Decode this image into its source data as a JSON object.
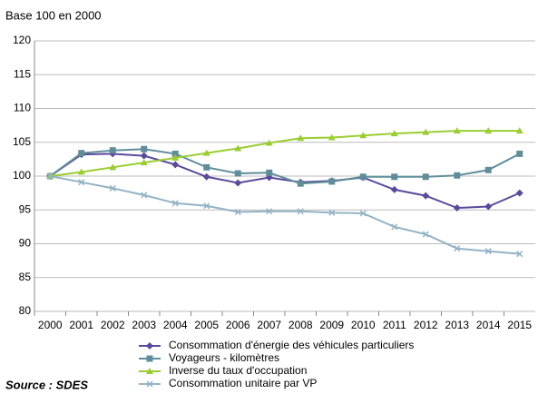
{
  "chart_data": {
    "type": "line",
    "subtitle": "Base 100 en 2000",
    "source": "Source : SDES",
    "categories": [
      "2000",
      "2001",
      "2002",
      "2003",
      "2004",
      "2005",
      "2006",
      "2007",
      "2008",
      "2009",
      "2010",
      "2011",
      "2012",
      "2013",
      "2014",
      "2015"
    ],
    "series": [
      {
        "name": "Consommation d'énergie des véhicules particuliers",
        "color": "#5b4a9b",
        "marker": "diamond",
        "values": [
          100,
          103.2,
          103.3,
          103,
          101.7,
          99.9,
          99,
          99.8,
          99.1,
          99.3,
          99.8,
          98,
          97.1,
          95.3,
          95.5,
          97.5
        ]
      },
      {
        "name": "Voyageurs - kilomètres",
        "color": "#5f8e9a",
        "marker": "square",
        "values": [
          100,
          103.4,
          103.8,
          104,
          103.3,
          101.3,
          100.4,
          100.5,
          98.9,
          99.2,
          99.9,
          99.9,
          99.9,
          100.1,
          100.9,
          103.3
        ]
      },
      {
        "name": "Inverse du taux d'occupation",
        "color": "#9acd32",
        "marker": "triangle",
        "values": [
          100,
          100.6,
          101.3,
          102,
          102.7,
          103.4,
          104.1,
          104.9,
          105.6,
          105.7,
          106,
          106.3,
          106.5,
          106.7,
          106.7,
          106.7
        ]
      },
      {
        "name": "Consommation unitaire par VP",
        "color": "#93b3c5",
        "marker": "x",
        "values": [
          100,
          99.1,
          98.2,
          97.2,
          96,
          95.6,
          94.7,
          94.8,
          94.8,
          94.6,
          94.5,
          92.5,
          91.4,
          89.3,
          88.9,
          88.5
        ]
      }
    ],
    "ylim": [
      80,
      120
    ],
    "yticks": [
      80,
      85,
      90,
      95,
      100,
      105,
      110,
      115,
      120
    ],
    "grid": true
  }
}
